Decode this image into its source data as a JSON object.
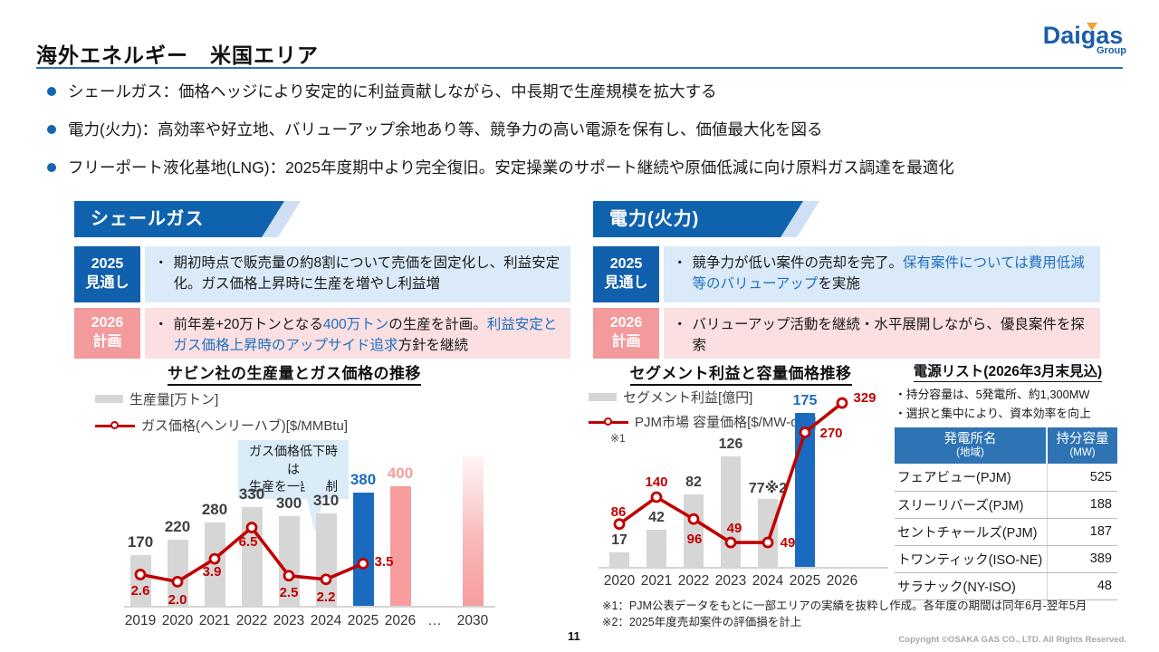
{
  "slide": {
    "title": "海外エネルギー　米国エリア",
    "page_number": "11",
    "copyright": "Copyright ©OSAKA GAS CO., LTD. All Rights Reserved.",
    "logo": {
      "brand": "Daigas",
      "sub": "Group"
    }
  },
  "bullets": [
    "シェールガス：価格ヘッジにより安定的に利益貢献しながら、中長期で生産規模を拡大する",
    "電力(火力)：高効率や好立地、バリューアップ余地あり等、競争力の高い電源を保有し、価値最大化を図る",
    "フリーポート液化基地(LNG)：2025年度期中より完全復旧。安定操業のサポート継続や原価低減に向け原料ガス調達を最適化"
  ],
  "colors": {
    "banner_blue": "#0f62ae",
    "accent_blue": "#1f6fc2",
    "bar_blue": "#1a6bbf",
    "bar_gray": "#d6d6d6",
    "bar_pink": "#f79d9d",
    "line_red": "#c00000",
    "tag_pink": "#f39a9c",
    "row_lightblue": "#daeaf8",
    "row_lightpink": "#fbdfe1",
    "table_header_blue": "#2e74b5"
  },
  "panels": {
    "shale": {
      "header": "シェールガス",
      "rows": [
        {
          "year": "2025",
          "label": "見通し",
          "tone": "blue",
          "segments": [
            {
              "t": "期初時点で販売量の約8割について売価を固定化し、利益安定化。ガス価格上昇時に生産を増やし利益増",
              "c": "dark"
            }
          ]
        },
        {
          "year": "2026",
          "label": "計画",
          "tone": "pink",
          "segments": [
            {
              "t": "前年差+20万トンとなる",
              "c": "dark"
            },
            {
              "t": "400万トン",
              "c": "blue"
            },
            {
              "t": "の生産を計画。",
              "c": "dark"
            },
            {
              "t": "利益安定とガス価格上昇時のアップサイド追求",
              "c": "blue"
            },
            {
              "t": "方針を継続",
              "c": "dark"
            }
          ]
        }
      ]
    },
    "power": {
      "header": "電力(火力)",
      "rows": [
        {
          "year": "2025",
          "label": "見通し",
          "tone": "blue",
          "segments": [
            {
              "t": "競争力が低い案件の売却を完了。",
              "c": "dark"
            },
            {
              "t": "保有案件については費用低減等のバリューアップ",
              "c": "blue"
            },
            {
              "t": "を実施",
              "c": "dark"
            }
          ]
        },
        {
          "year": "2026",
          "label": "計画",
          "tone": "pink",
          "segments": [
            {
              "t": "バリューアップ活動を継続・水平展開しながら、優良案件を探索",
              "c": "dark"
            }
          ]
        }
      ]
    }
  },
  "chart_data": [
    {
      "id": "sabine",
      "type": "bar+line",
      "title": "サビン社の生産量とガス価格の推移",
      "legend": [
        {
          "label": "生産量[万トン]",
          "marker": "bar"
        },
        {
          "label": "ガス価格(ヘンリーハブ)[$/MMBtu]",
          "marker": "line"
        }
      ],
      "annotation_lines": [
        "ガス価格低下時は",
        "生産を一部抑制"
      ],
      "categories": [
        "2019",
        "2020",
        "2021",
        "2022",
        "2023",
        "2024",
        "2025",
        "2026",
        "…",
        "2030"
      ],
      "bars": {
        "series_name": "生産量[万トン]",
        "values": [
          170,
          220,
          280,
          330,
          300,
          310,
          380,
          400,
          null,
          500
        ],
        "labels": [
          "170",
          "220",
          "280",
          "330",
          "300",
          "310",
          "380",
          "400",
          "",
          ""
        ],
        "styles": [
          "gray",
          "gray",
          "gray",
          "gray",
          "gray",
          "gray",
          "blue",
          "pink",
          null,
          "pink_gradient"
        ]
      },
      "line": {
        "series_name": "ガス価格(ヘンリーハブ)[$/MMBtu]",
        "values": [
          2.6,
          2.0,
          3.9,
          6.5,
          2.5,
          2.2,
          3.5,
          null,
          null,
          null
        ],
        "labels": [
          "2.6",
          "2.0",
          "3.9",
          "6.5",
          "2.5",
          "2.2",
          "3.5",
          "",
          "",
          ""
        ]
      }
    },
    {
      "id": "segment",
      "type": "bar+line",
      "title": "セグメント利益と容量価格推移",
      "legend": [
        {
          "label": "セグメント利益[億円]",
          "marker": "bar"
        },
        {
          "label": "PJM市場 容量価格[$/MW-day]",
          "marker": "line"
        }
      ],
      "legend_note": "※1",
      "categories": [
        "2020",
        "2021",
        "2022",
        "2023",
        "2024",
        "2025",
        "2026"
      ],
      "bars": {
        "series_name": "セグメント利益[億円]",
        "values": [
          17,
          42,
          82,
          126,
          77,
          175,
          null
        ],
        "labels": [
          "17",
          "42",
          "82",
          "126",
          "77※2",
          "175",
          ""
        ],
        "styles": [
          "gray",
          "gray",
          "gray",
          "gray",
          "gray",
          "blue",
          null
        ]
      },
      "line": {
        "series_name": "PJM市場 容量価格[$/MW-day]",
        "values": [
          86,
          140,
          96,
          49,
          49,
          270,
          329
        ],
        "labels": [
          "86",
          "140",
          "96",
          "49",
          "49",
          "270",
          "329"
        ]
      }
    }
  ],
  "power_list": {
    "title": "電源リスト(2026年3月末見込)",
    "notes": [
      "・持分容量は、5発電所、約1,300MW",
      "・選択と集中により、資本効率を向上"
    ],
    "table": {
      "headers": [
        {
          "line1": "発電所名",
          "line2": "(地域)"
        },
        {
          "line1": "持分容量",
          "line2": "(MW)"
        }
      ],
      "rows": [
        {
          "name": "フェアビュー(PJM)",
          "mw": "525"
        },
        {
          "name": "スリーリバーズ(PJM)",
          "mw": "188"
        },
        {
          "name": "セントチャールズ(PJM)",
          "mw": "187"
        },
        {
          "name": "トワンティック(ISO-NE)",
          "mw": "389"
        },
        {
          "name": "サラナック(NY-ISO)",
          "mw": "48"
        }
      ]
    }
  },
  "footnotes": [
    "※1：PJM公表データをもとに一部エリアの実績を抜粋し作成。各年度の期間は同年6月-翌年5月",
    "※2：2025年度売却案件の評価損を計上"
  ]
}
